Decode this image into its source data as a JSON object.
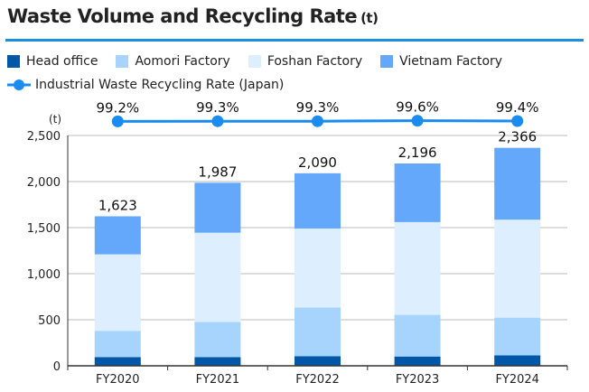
{
  "chart_data": {
    "type": "bar",
    "title": "Waste Volume and Recycling Rate",
    "title_unit": "(t)",
    "ylabel": "(t)",
    "ylim": [
      0,
      2500
    ],
    "yticks": [
      0,
      500,
      1000,
      1500,
      2000,
      2500
    ],
    "ytick_labels": [
      "0",
      "500",
      "1,000",
      "1,500",
      "2,000",
      "2,500"
    ],
    "categories": [
      "FY2020",
      "FY2021",
      "FY2022",
      "FY2023",
      "FY2024"
    ],
    "series": [
      {
        "name": "Head office",
        "color": "#0057a8",
        "values": [
          95,
          95,
          105,
          101,
          114
        ]
      },
      {
        "name": "Aomori Factory",
        "color": "#a6d4fc",
        "values": [
          285,
          380,
          527,
          452,
          409
        ]
      },
      {
        "name": "Foshan Factory",
        "color": "#ddeefe",
        "values": [
          830,
          970,
          858,
          1007,
          1063
        ]
      },
      {
        "name": "Vietnam Factory",
        "color": "#64a8fc",
        "values": [
          413,
          542,
          600,
          636,
          780
        ]
      }
    ],
    "totals": [
      1623,
      1987,
      2090,
      2196,
      2366
    ],
    "total_labels": [
      "1,623",
      "1,987",
      "2,090",
      "2,196",
      "2,366"
    ],
    "line": {
      "name": "Industrial Waste Recycling Rate (Japan)",
      "color": "#1a8cf0",
      "values": [
        99.2,
        99.3,
        99.3,
        99.6,
        99.4
      ],
      "labels": [
        "99.2%",
        "99.3%",
        "99.3%",
        "99.6%",
        "99.4%"
      ]
    },
    "grid": true,
    "legend_placement": "top"
  }
}
